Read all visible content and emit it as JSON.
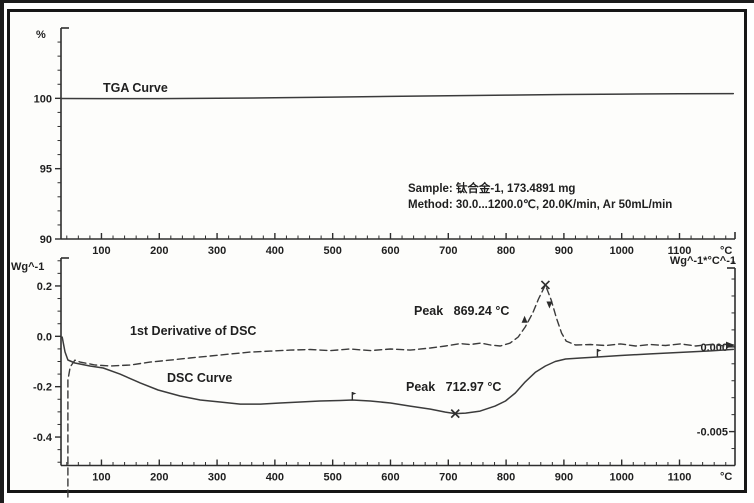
{
  "window": {
    "background": "#ffffff",
    "frame_color": "#161616",
    "plot_background": "#fdfdfb",
    "ink": "#2e2e2e",
    "text_color": "#1f1f1f"
  },
  "top_panel": {
    "ylabel": "%",
    "x_unit": "°C",
    "curve_label": "TGA Curve",
    "sample_line": "Sample: 钛合金-1, 173.4891 mg",
    "method_line": "Method: 30.0...1200.0℃, 20.0K/min, Ar 50mL/min"
  },
  "bottom_panel": {
    "ylabel_left": "Wg^-1",
    "ylabel_right": "Wg^-1*°C^-1",
    "x_unit": "°C",
    "dsc_label": "DSC Curve",
    "derivative_label": "1st Derivative of DSC",
    "peak_derivative_label": "Peak   869.24 °C",
    "peak_dsc_label": "Peak   712.97 °C"
  },
  "chart_data": [
    {
      "type": "line",
      "panel": "TGA",
      "title": "TGA Curve",
      "xlabel": "°C",
      "ylabel": "%",
      "grid": false,
      "xlim": [
        30,
        1196
      ],
      "ylim": [
        90,
        105
      ],
      "xticks": [
        100,
        200,
        300,
        400,
        500,
        600,
        700,
        800,
        900,
        1000,
        1100
      ],
      "xtick_labels": [
        "100",
        "200",
        "300",
        "400",
        "500",
        "600",
        "700",
        "800",
        "900",
        "1000",
        "1100"
      ],
      "xtick_minor_step": 20,
      "yticks": [
        100,
        95,
        90
      ],
      "ytick_labels": [
        "100",
        "95",
        "90"
      ],
      "ytick_minor_step": 1,
      "series": [
        {
          "name": "TGA",
          "style": "solid",
          "points": [
            [
              30,
              99.99
            ],
            [
              100,
              99.98
            ],
            [
              200,
              99.98
            ],
            [
              300,
              100.0
            ],
            [
              400,
              100.04
            ],
            [
              500,
              100.09
            ],
            [
              600,
              100.14
            ],
            [
              700,
              100.19
            ],
            [
              800,
              100.23
            ],
            [
              900,
              100.27
            ],
            [
              1000,
              100.3
            ],
            [
              1100,
              100.32
            ],
            [
              1193,
              100.34
            ]
          ]
        }
      ]
    },
    {
      "type": "line",
      "panel": "DSC",
      "xlabel": "°C",
      "ylabel_left": "Wg^-1",
      "ylabel_right": "Wg^-1*°C^-1",
      "grid": false,
      "xlim": [
        30,
        1196
      ],
      "xticks": [
        100,
        200,
        300,
        400,
        500,
        600,
        700,
        800,
        900,
        1000,
        1100
      ],
      "xtick_labels": [
        "100",
        "200",
        "300",
        "400",
        "500",
        "600",
        "700",
        "800",
        "900",
        "1000",
        "1100"
      ],
      "xtick_minor_step": 20,
      "ylim_left": [
        -0.513,
        0.311
      ],
      "yticks_left": [
        0.2,
        0.0,
        -0.2,
        -0.4
      ],
      "ytick_left_labels": [
        "0.2",
        "0.0",
        "-0.2",
        "-0.4"
      ],
      "ytick_left_minor_step": 0.05,
      "ylim_right": [
        -0.007,
        0.00524
      ],
      "yticks_right": [
        0.0,
        -0.005
      ],
      "ytick_right_labels": [
        "0.000",
        "-0.005"
      ],
      "ytick_right_minor_step": 0.001,
      "series": [
        {
          "name": "DSC",
          "axis": "left",
          "style": "solid",
          "points": [
            [
              32,
              -0.003
            ],
            [
              37,
              -0.062
            ],
            [
              42,
              -0.094
            ],
            [
              54,
              -0.106
            ],
            [
              80,
              -0.118
            ],
            [
              103,
              -0.126
            ],
            [
              132,
              -0.15
            ],
            [
              167,
              -0.185
            ],
            [
              198,
              -0.213
            ],
            [
              236,
              -0.237
            ],
            [
              271,
              -0.253
            ],
            [
              305,
              -0.261
            ],
            [
              340,
              -0.269
            ],
            [
              375,
              -0.269
            ],
            [
              409,
              -0.265
            ],
            [
              444,
              -0.261
            ],
            [
              478,
              -0.257
            ],
            [
              513,
              -0.255
            ],
            [
              534,
              -0.253
            ],
            [
              565,
              -0.257
            ],
            [
              600,
              -0.265
            ],
            [
              634,
              -0.277
            ],
            [
              669,
              -0.289
            ],
            [
              695,
              -0.301
            ],
            [
              712,
              -0.307
            ],
            [
              730,
              -0.305
            ],
            [
              755,
              -0.297
            ],
            [
              781,
              -0.277
            ],
            [
              799,
              -0.257
            ],
            [
              816,
              -0.225
            ],
            [
              833,
              -0.181
            ],
            [
              851,
              -0.142
            ],
            [
              868,
              -0.118
            ],
            [
              885,
              -0.1
            ],
            [
              903,
              -0.09
            ],
            [
              929,
              -0.086
            ],
            [
              958,
              -0.082
            ],
            [
              998,
              -0.076
            ],
            [
              1050,
              -0.07
            ],
            [
              1102,
              -0.064
            ],
            [
              1154,
              -0.058
            ],
            [
              1193,
              -0.052
            ]
          ]
        },
        {
          "name": "DSC 1st derivative",
          "axis": "right",
          "style": "dashed",
          "points": [
            [
              42,
              -0.00886
            ],
            [
              42,
              -0.00196
            ],
            [
              46,
              -0.00119
            ],
            [
              54,
              -0.00078
            ],
            [
              63,
              -0.0009
            ],
            [
              89,
              -0.00107
            ],
            [
              115,
              -0.00113
            ],
            [
              150,
              -0.00107
            ],
            [
              184,
              -0.0009
            ],
            [
              219,
              -0.00078
            ],
            [
              253,
              -0.00066
            ],
            [
              288,
              -0.00054
            ],
            [
              323,
              -0.00042
            ],
            [
              357,
              -0.00031
            ],
            [
              392,
              -0.00025
            ],
            [
              427,
              -0.00019
            ],
            [
              461,
              -0.00016
            ],
            [
              496,
              -0.00022
            ],
            [
              530,
              -0.00013
            ],
            [
              565,
              -0.00022
            ],
            [
              600,
              -0.00013
            ],
            [
              634,
              -0.00019
            ],
            [
              669,
              -7e-05
            ],
            [
              695,
              5e-05
            ],
            [
              721,
              0.00019
            ],
            [
              738,
              0.00014
            ],
            [
              756,
              0.00022
            ],
            [
              773,
              0.00011
            ],
            [
              790,
              5e-05
            ],
            [
              807,
              0.00022
            ],
            [
              821,
              0.00058
            ],
            [
              833,
              0.00117
            ],
            [
              846,
              0.00199
            ],
            [
              856,
              0.00282
            ],
            [
              868,
              0.00365
            ],
            [
              878,
              0.00276
            ],
            [
              887,
              0.0017
            ],
            [
              896,
              0.00081
            ],
            [
              904,
              0.00034
            ],
            [
              920,
              0.00011
            ],
            [
              946,
              0.00014
            ],
            [
              972,
              8e-05
            ],
            [
              998,
              0.00017
            ],
            [
              1024,
              5e-05
            ],
            [
              1050,
              0.00014
            ],
            [
              1076,
              8e-05
            ],
            [
              1102,
              0.00017
            ],
            [
              1128,
              5e-05
            ],
            [
              1154,
              0.00014
            ],
            [
              1180,
              5e-05
            ],
            [
              1193,
              0.00011
            ]
          ]
        }
      ],
      "annotations": {
        "peaks": [
          {
            "label": "Peak   869.24 °C",
            "series": "DSC 1st derivative",
            "t": 868,
            "value": 0.00365
          },
          {
            "label": "Peak   712.97 °C",
            "series": "DSC",
            "t": 712,
            "value": -0.307
          }
        ],
        "flags": [
          {
            "series": "DSC",
            "t": 534,
            "value": -0.253
          },
          {
            "series": "DSC",
            "t": 958,
            "value": -0.082
          }
        ],
        "slope_arrows": [
          {
            "series": "DSC 1st derivative",
            "t": 832,
            "value": 0.0016,
            "dir": "up"
          },
          {
            "series": "DSC 1st derivative",
            "t": 875,
            "value": 0.0025,
            "dir": "down"
          }
        ],
        "end_arrow": {
          "series": "DSC 1st derivative",
          "t": 1193,
          "value": 0.0001
        }
      }
    }
  ]
}
